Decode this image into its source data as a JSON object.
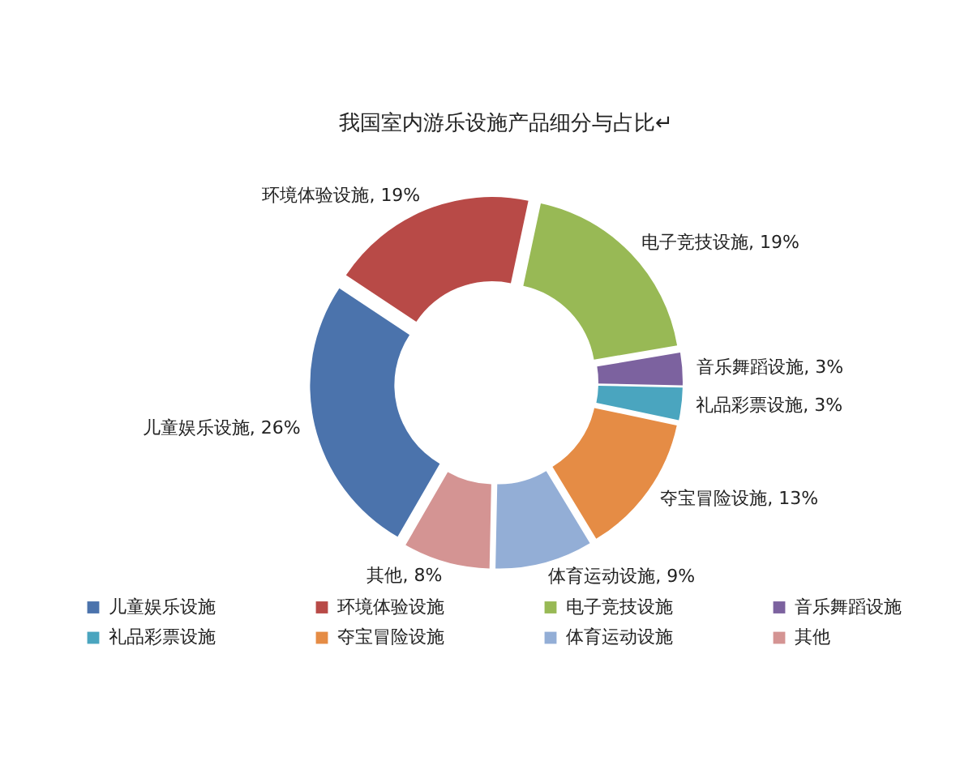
{
  "chart_data": {
    "type": "donut",
    "title": "我国室内游乐设施产品细分与占比↵",
    "categories": [
      "儿童娱乐设施",
      "环境体验设施",
      "电子竞技设施",
      "音乐舞蹈设施",
      "礼品彩票设施",
      "夺宝冒险设施",
      "体育运动设施",
      "其他"
    ],
    "values": [
      26,
      19,
      19,
      3,
      3,
      13,
      9,
      8
    ],
    "colors": [
      "#4b73ac",
      "#b84a47",
      "#98b955",
      "#7c629f",
      "#4aa5bf",
      "#e58c45",
      "#93aed6",
      "#d49493"
    ],
    "value_labels": [
      "儿童娱乐设施, 26%",
      "环境体验设施, 19%",
      "电子竞技设施, 19%",
      "音乐舞蹈设施, 3%",
      "礼品彩票设施, 3%",
      "夺宝冒险设施, 13%",
      "体育运动设施, 9%",
      "其他, 8%"
    ],
    "legend": "bottom"
  }
}
